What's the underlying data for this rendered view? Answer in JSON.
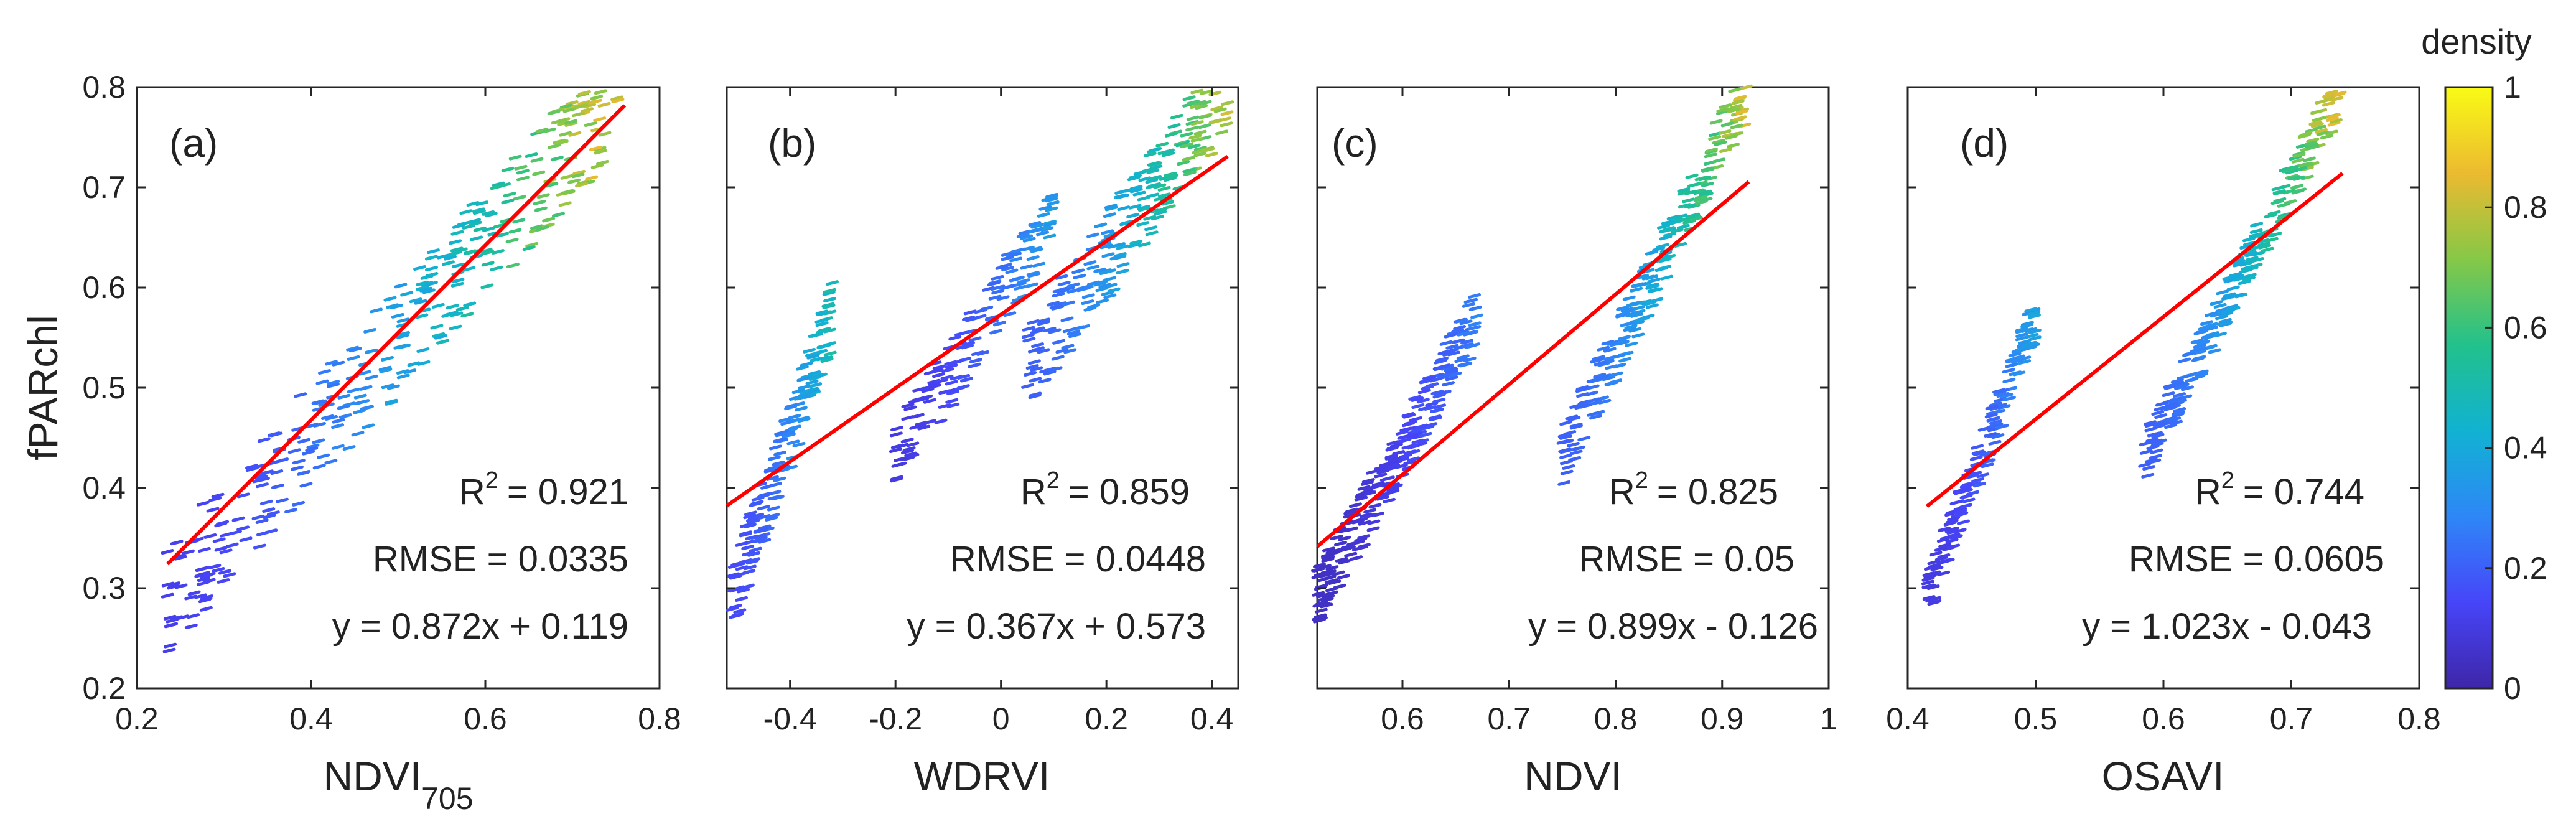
{
  "chart_data": [
    {
      "type": "scatter",
      "panel_label": "(a)",
      "xlabel": "NDVI",
      "xlabel_subscript": "705",
      "ylabel": "fPARchl",
      "xlim": [
        0.2,
        0.8
      ],
      "ylim": [
        0.2,
        0.8
      ],
      "xticks": [
        0.2,
        0.4,
        0.6,
        0.8
      ],
      "xtick_labels": [
        "0.2",
        "0.4",
        "0.6",
        "0.8"
      ],
      "yticks": [
        0.2,
        0.3,
        0.4,
        0.5,
        0.6,
        0.7,
        0.8
      ],
      "ytick_labels": [
        "0.2",
        "0.3",
        "0.4",
        "0.5",
        "0.6",
        "0.7",
        "0.8"
      ],
      "fit": {
        "slope": 0.872,
        "intercept": 0.119,
        "x_range": [
          0.235,
          0.76
        ]
      },
      "r2_label": "R",
      "r2_value": "= 0.921",
      "rmse_text": "RMSE = 0.0335",
      "equation_text": "y = 0.872x + 0.119",
      "clusters": [
        {
          "x": [
            0.235,
            0.76
          ],
          "y": [
            0.29,
            0.8
          ],
          "spread": 0.11,
          "n": 360,
          "density": [
            0.12,
            0.95
          ]
        }
      ]
    },
    {
      "type": "scatter",
      "panel_label": "(b)",
      "xlabel": "WDRVI",
      "ylabel": "",
      "xlim": [
        -0.52,
        0.45
      ],
      "ylim": [
        0.2,
        0.8
      ],
      "xticks": [
        -0.4,
        -0.2,
        0,
        0.2,
        0.4
      ],
      "xtick_labels": [
        "-0.4",
        "-0.2",
        "0",
        "0.2",
        "0.4"
      ],
      "yticks": [
        0.2,
        0.3,
        0.4,
        0.5,
        0.6,
        0.7,
        0.8
      ],
      "fit": {
        "slope": 0.367,
        "intercept": 0.573,
        "x_range": [
          -0.52,
          0.43
        ]
      },
      "r2_label": "R",
      "r2_value": "= 0.859",
      "rmse_text": "RMSE = 0.0448",
      "equation_text": "y = 0.367x + 0.573",
      "clusters": [
        {
          "x": [
            -0.51,
            -0.32
          ],
          "y": [
            0.29,
            0.57
          ],
          "spread": 0.07,
          "n": 160,
          "density": [
            0.15,
            0.55
          ]
        },
        {
          "x": [
            -0.2,
            0.1
          ],
          "y": [
            0.43,
            0.67
          ],
          "spread": 0.07,
          "n": 150,
          "density": [
            0.1,
            0.4
          ]
        },
        {
          "x": [
            0.05,
            0.43
          ],
          "y": [
            0.52,
            0.8
          ],
          "spread": 0.09,
          "n": 220,
          "density": [
            0.2,
            0.9
          ]
        }
      ]
    },
    {
      "type": "scatter",
      "panel_label": "(c)",
      "xlabel": "NDVI",
      "ylabel": "",
      "xlim": [
        0.52,
        1.0
      ],
      "ylim": [
        0.2,
        0.8
      ],
      "xticks": [
        0.6,
        0.7,
        0.8,
        0.9,
        1.0
      ],
      "xtick_labels": [
        "0.6",
        "0.7",
        "0.8",
        "0.9",
        "1"
      ],
      "yticks": [
        0.2,
        0.3,
        0.4,
        0.5,
        0.6,
        0.7,
        0.8
      ],
      "fit": {
        "slope": 0.899,
        "intercept": -0.126,
        "x_range": [
          0.52,
          0.925
        ]
      },
      "r2_label": "R",
      "r2_value": "= 0.825",
      "rmse_text": "RMSE = 0.05",
      "equation_text": "y = 0.899x - 0.126",
      "clusters": [
        {
          "x": [
            0.52,
            0.67
          ],
          "y": [
            0.29,
            0.57
          ],
          "spread": 0.06,
          "n": 260,
          "density": [
            0.05,
            0.3
          ]
        },
        {
          "x": [
            0.75,
            0.925
          ],
          "y": [
            0.43,
            0.8
          ],
          "spread": 0.06,
          "n": 240,
          "density": [
            0.2,
            0.9
          ]
        }
      ]
    },
    {
      "type": "scatter",
      "panel_label": "(d)",
      "xlabel": "OSAVI",
      "ylabel": "",
      "xlim": [
        0.4,
        0.8
      ],
      "ylim": [
        0.2,
        0.8
      ],
      "xticks": [
        0.4,
        0.5,
        0.6,
        0.7,
        0.8
      ],
      "xtick_labels": [
        "0.4",
        "0.5",
        "0.6",
        "0.7",
        "0.8"
      ],
      "yticks": [
        0.2,
        0.3,
        0.4,
        0.5,
        0.6,
        0.7,
        0.8
      ],
      "fit": {
        "slope": 1.023,
        "intercept": -0.043,
        "x_range": [
          0.415,
          0.74
        ]
      },
      "r2_label": "R",
      "r2_value": "= 0.744",
      "rmse_text": "RMSE = 0.0605",
      "equation_text": "y = 1.023x - 0.043",
      "clusters": [
        {
          "x": [
            0.415,
            0.5
          ],
          "y": [
            0.29,
            0.57
          ],
          "spread": 0.05,
          "n": 160,
          "density": [
            0.1,
            0.4
          ]
        },
        {
          "x": [
            0.585,
            0.74
          ],
          "y": [
            0.43,
            0.8
          ],
          "spread": 0.05,
          "n": 240,
          "density": [
            0.2,
            0.95
          ]
        }
      ]
    }
  ],
  "colorbar": {
    "title": "density",
    "range": [
      0,
      1
    ],
    "ticks": [
      0,
      0.2,
      0.4,
      0.6,
      0.8,
      1
    ],
    "tick_labels": [
      "0",
      "0.2",
      "0.4",
      "0.6",
      "0.8",
      "1"
    ],
    "colormap": [
      "#3e26a8",
      "#4745f9",
      "#2e87f7",
      "#11b2d2",
      "#22c18c",
      "#86c847",
      "#ecba30",
      "#f9fb15"
    ]
  },
  "fit_line_color": "#ff0000"
}
